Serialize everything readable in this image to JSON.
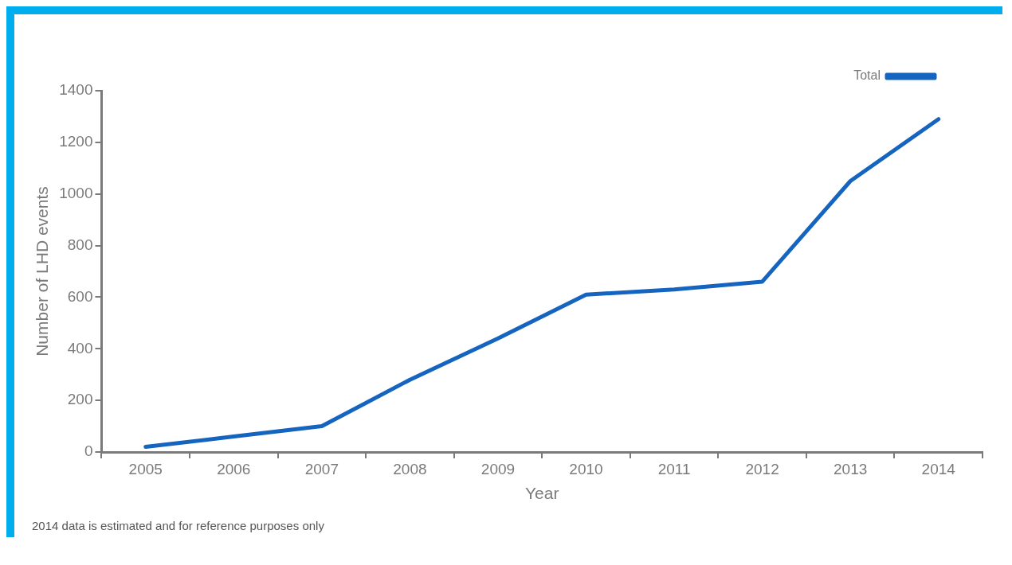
{
  "chart_data": {
    "type": "line",
    "xlabel": "Year",
    "ylabel": "Number of LHD events",
    "categories": [
      "2005",
      "2006",
      "2007",
      "2008",
      "2009",
      "2010",
      "2011",
      "2012",
      "2013",
      "2014"
    ],
    "series": [
      {
        "name": "Total",
        "color": "#1565c0",
        "values": [
          20,
          60,
          100,
          280,
          440,
          610,
          630,
          660,
          1050,
          1290
        ]
      }
    ],
    "ylim": [
      0,
      1400
    ],
    "yticks": [
      0,
      200,
      400,
      600,
      800,
      1000,
      1200,
      1400
    ],
    "grid": false,
    "legend": "top right",
    "marker": "none",
    "line_style": "solid",
    "annotations": [
      "2014 data is estimated and for reference purposes only"
    ]
  }
}
